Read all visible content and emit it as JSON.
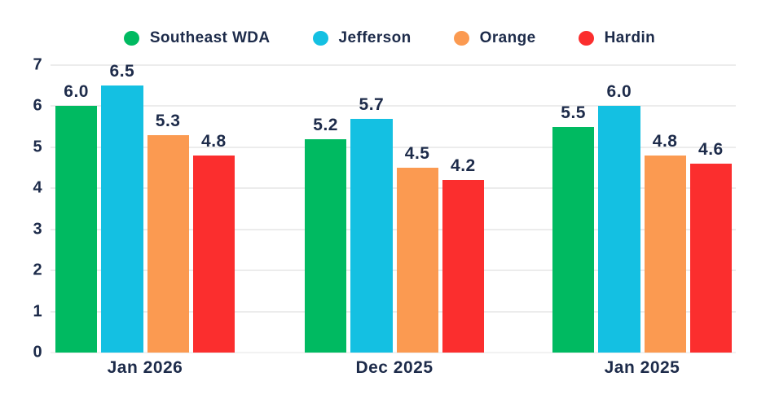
{
  "colors": {
    "text": "#1d2b4a",
    "gridline": "#ececec",
    "background": "#ffffff",
    "southeast_wda": "#00ba61",
    "jefferson": "#14c0e2",
    "orange": "#fb9a51",
    "hardin": "#fb2e2e"
  },
  "chart_data": {
    "type": "bar",
    "title": "",
    "xlabel": "",
    "ylabel": "",
    "categories": [
      "Jan 2026",
      "Dec 2025",
      "Jan 2025"
    ],
    "series": [
      {
        "name": "Southeast WDA",
        "color": "#00ba61",
        "values": [
          6.0,
          5.2,
          5.5
        ]
      },
      {
        "name": "Jefferson",
        "color": "#14c0e2",
        "values": [
          6.5,
          5.7,
          6.0
        ]
      },
      {
        "name": "Orange",
        "color": "#fb9a51",
        "values": [
          5.3,
          4.5,
          4.8
        ]
      },
      {
        "name": "Hardin",
        "color": "#fb2e2e",
        "values": [
          4.8,
          4.2,
          4.6
        ]
      }
    ],
    "value_labels": [
      "6.0",
      "6.5",
      "5.3",
      "4.8",
      "5.2",
      "5.7",
      "4.5",
      "4.2",
      "5.5",
      "6.0",
      "4.8",
      "4.6"
    ],
    "ylim": [
      0,
      7
    ],
    "yticks": [
      0,
      1,
      2,
      3,
      4,
      5,
      6,
      7
    ],
    "grid": true,
    "legend_position": "top",
    "legend_entries": [
      "Southeast WDA",
      "Jefferson",
      "Orange",
      "Hardin"
    ]
  }
}
